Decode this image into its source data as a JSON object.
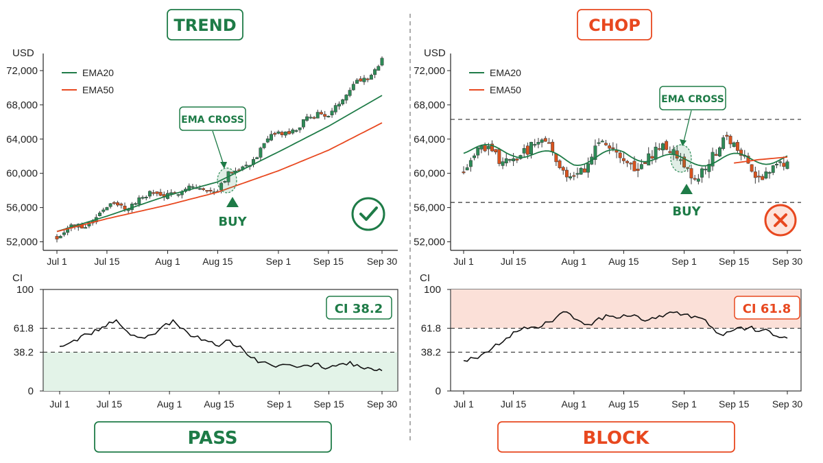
{
  "panels": [
    {
      "id": "trend",
      "title": "TREND",
      "accent": "#1e7b47",
      "price_axis_label": "USD",
      "ci_axis_label": "CI",
      "legend": [
        {
          "name": "EMA20",
          "color": "#1e7b47"
        },
        {
          "name": "EMA50",
          "color": "#e8481f"
        }
      ],
      "signal_label": "EMA CROSS",
      "buy_label": "BUY",
      "status_icon": "check-circle-icon",
      "ci_badge": "CI 38.2",
      "verdict": "PASS"
    },
    {
      "id": "chop",
      "title": "CHOP",
      "accent": "#e8481f",
      "price_axis_label": "USD",
      "ci_axis_label": "CI",
      "legend": [
        {
          "name": "EMA20",
          "color": "#1e7b47"
        },
        {
          "name": "EMA50",
          "color": "#e8481f"
        }
      ],
      "signal_label": "EMA CROSS",
      "buy_label": "BUY",
      "status_icon": "x-circle-icon",
      "ci_badge": "CI 61.8",
      "verdict": "BLOCK"
    }
  ],
  "colors": {
    "bull": "#2e8b57",
    "bear": "#d9531e",
    "ema20": "#1e7b47",
    "ema50": "#e8481f",
    "pass_zone": "#e3f3e8",
    "block_zone": "#fbe0d8"
  },
  "chart_data": [
    {
      "type": "candlestick",
      "panel": "trend",
      "xlabel": "",
      "ylabel": "USD",
      "x_ticks": [
        "Jul 1",
        "Jul 15",
        "Aug 1",
        "Aug 15",
        "Sep 1",
        "Sep 15",
        "Sep 30"
      ],
      "y_ticks": [
        52000,
        56000,
        60000,
        64000,
        68000,
        72000
      ],
      "ylim": [
        51000,
        74000
      ],
      "x_range": [
        "2024-07-01",
        "2024-09-30"
      ],
      "series": [
        {
          "name": "EMA20",
          "points": [
            [
              "Jul 1",
              53200
            ],
            [
              "Jul 15",
              55000
            ],
            [
              "Aug 1",
              57400
            ],
            [
              "Aug 15",
              59000
            ],
            [
              "Sep 1",
              62500
            ],
            [
              "Sep 15",
              65500
            ],
            [
              "Sep 30",
              69100
            ]
          ]
        },
        {
          "name": "EMA50",
          "points": [
            [
              "Jul 1",
              53200
            ],
            [
              "Jul 15",
              54700
            ],
            [
              "Aug 1",
              56300
            ],
            [
              "Aug 15",
              57800
            ],
            [
              "Sep 1",
              60300
            ],
            [
              "Sep 15",
              62700
            ],
            [
              "Sep 30",
              65900
            ]
          ]
        },
        {
          "name": "close",
          "points": [
            [
              "Jul 1",
              52500
            ],
            [
              "Jul 15",
              55800
            ],
            [
              "Aug 1",
              57800
            ],
            [
              "Aug 15",
              58400
            ],
            [
              "Sep 1",
              64500
            ],
            [
              "Sep 15",
              67200
            ],
            [
              "Sep 30",
              73300
            ]
          ]
        }
      ],
      "annotations": [
        {
          "text": "EMA CROSS",
          "x": "Aug 17",
          "y": 58600
        },
        {
          "text": "BUY",
          "x": "Aug 17"
        }
      ]
    },
    {
      "type": "line",
      "panel": "trend",
      "ylabel": "CI",
      "x_ticks": [
        "Jul 1",
        "Jul 15",
        "Aug 1",
        "Aug 15",
        "Sep 1",
        "Sep 15",
        "Sep 30"
      ],
      "y_ticks": [
        0,
        38.2,
        61.8,
        100
      ],
      "ylim": [
        0,
        100
      ],
      "reference_lines": [
        38.2,
        61.8
      ],
      "highlight_band": [
        0,
        38.2
      ],
      "x_days": [
        0,
        4,
        8,
        12,
        16,
        20,
        24,
        28,
        32,
        36,
        40,
        44,
        48,
        52,
        56,
        60,
        64,
        68,
        72,
        76,
        80,
        84,
        88,
        91
      ],
      "values": [
        44,
        50,
        56,
        63,
        70,
        55,
        52,
        60,
        70,
        58,
        50,
        45,
        50,
        40,
        28,
        25,
        26,
        24,
        27,
        23,
        27,
        26,
        22,
        20
      ]
    },
    {
      "type": "candlestick",
      "panel": "chop",
      "xlabel": "",
      "ylabel": "USD",
      "x_ticks": [
        "Jul 1",
        "Jul 15",
        "Aug 1",
        "Aug 15",
        "Sep 1",
        "Sep 15",
        "Sep 30"
      ],
      "y_ticks": [
        52000,
        56000,
        60000,
        64000,
        68000,
        72000
      ],
      "ylim": [
        51000,
        74000
      ],
      "reference_lines": [
        56600,
        66300
      ],
      "series": [
        {
          "name": "EMA20",
          "points": [
            [
              "Jul 1",
              62800
            ],
            [
              "Jul 15",
              62600
            ],
            [
              "Aug 1",
              61500
            ],
            [
              "Aug 15",
              62300
            ],
            [
              "Sep 1",
              61400
            ],
            [
              "Sep 15",
              61700
            ],
            [
              "Sep 30",
              61700
            ]
          ]
        },
        {
          "name": "EMA50",
          "points": [
            [
              "Sep 15",
              61200
            ],
            [
              "Sep 22",
              61600
            ],
            [
              "Sep 30",
              61900
            ]
          ]
        },
        {
          "name": "close",
          "points": [
            [
              "Jul 1",
              60500
            ],
            [
              "Jul 15",
              62400
            ],
            [
              "Aug 1",
              61000
            ],
            [
              "Aug 15",
              63200
            ],
            [
              "Sep 1",
              60800
            ],
            [
              "Sep 15",
              61800
            ],
            [
              "Sep 30",
              60200
            ]
          ]
        }
      ],
      "annotations": [
        {
          "text": "EMA CROSS",
          "x": "Sep 2",
          "y": 61500
        },
        {
          "text": "BUY",
          "x": "Sep 2"
        }
      ]
    },
    {
      "type": "line",
      "panel": "chop",
      "ylabel": "CI",
      "x_ticks": [
        "Jul 1",
        "Jul 15",
        "Aug 1",
        "Aug 15",
        "Sep 1",
        "Sep 15",
        "Sep 30"
      ],
      "y_ticks": [
        0,
        38.2,
        61.8,
        100
      ],
      "ylim": [
        0,
        100
      ],
      "reference_lines": [
        38.2,
        61.8
      ],
      "highlight_band": [
        61.8,
        100
      ],
      "x_days": [
        0,
        4,
        8,
        12,
        16,
        20,
        24,
        28,
        32,
        36,
        40,
        44,
        48,
        52,
        56,
        60,
        64,
        68,
        72,
        76,
        80,
        84,
        88,
        91
      ],
      "values": [
        30,
        32,
        42,
        52,
        60,
        63,
        68,
        78,
        70,
        65,
        75,
        72,
        75,
        70,
        73,
        78,
        72,
        70,
        56,
        60,
        62,
        60,
        54,
        52
      ]
    }
  ]
}
